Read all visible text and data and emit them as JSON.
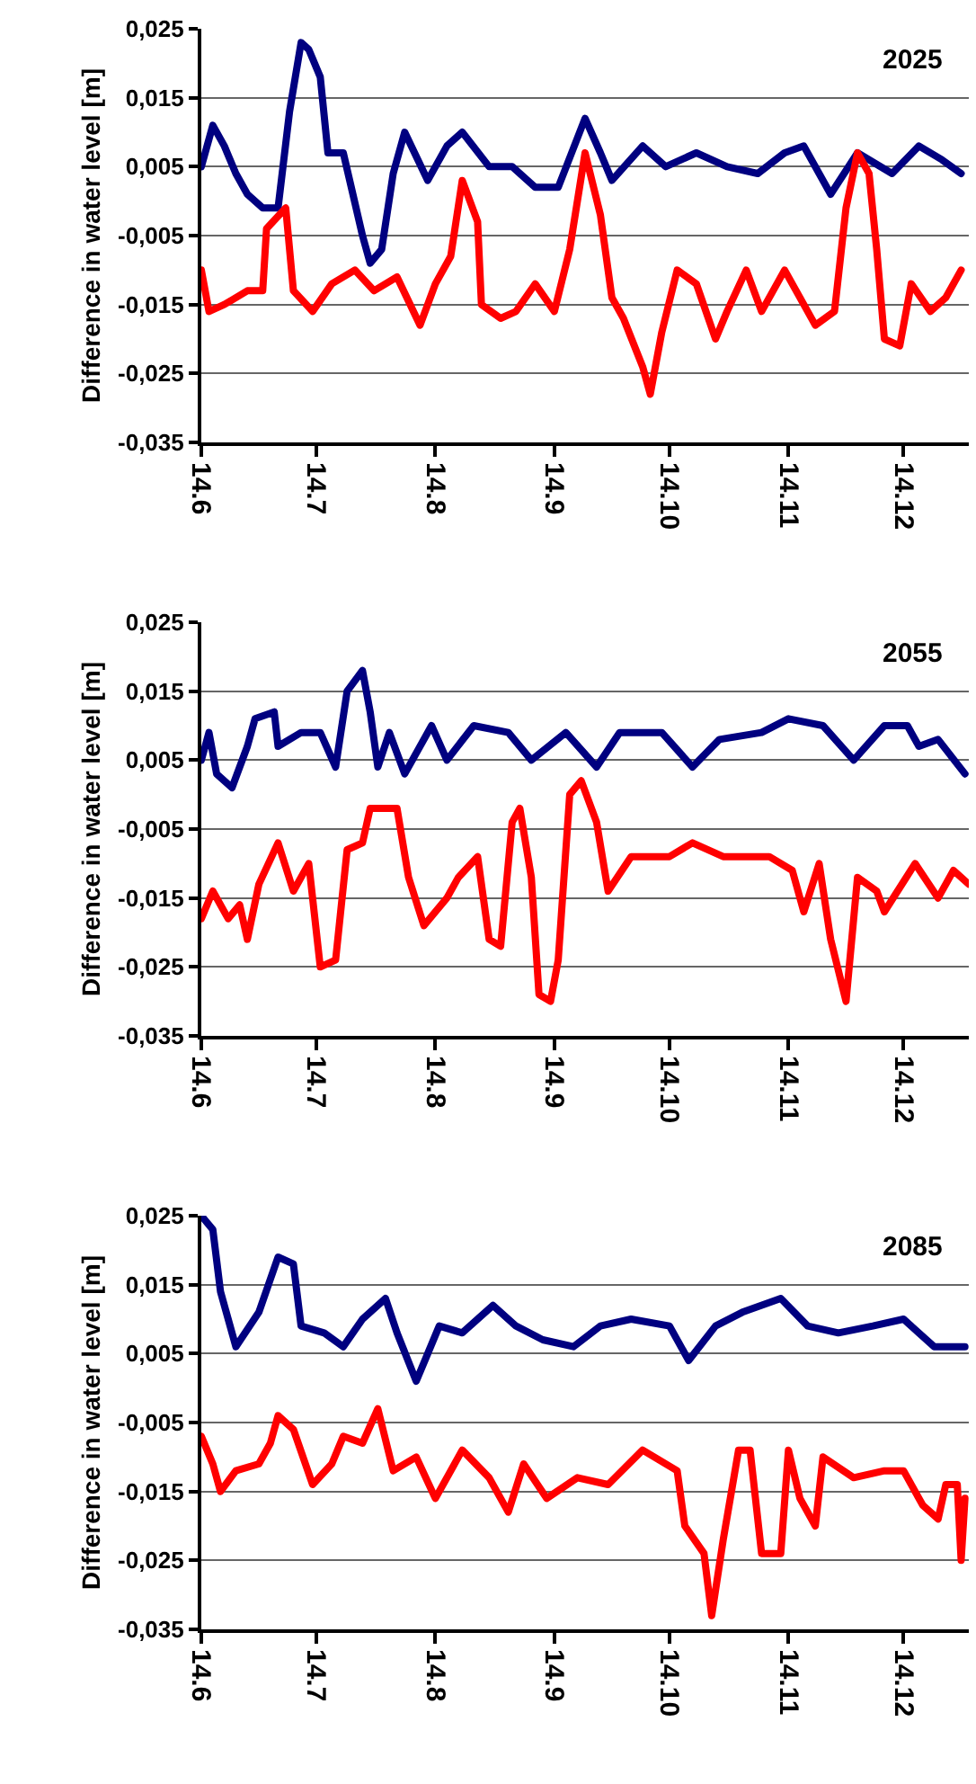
{
  "chart_data": [
    {
      "type": "line",
      "annotations": [
        "2025"
      ],
      "ylabel": "Difference in water level [m]",
      "grid": "y",
      "marker": "none",
      "line_style": "solid",
      "xlim": [
        "--06-14",
        "--12-31"
      ],
      "xticks": [
        {
          "value": "--06-14",
          "label": "14.6"
        },
        {
          "value": "--07-14",
          "label": "14.7"
        },
        {
          "value": "--08-14",
          "label": "14.8"
        },
        {
          "value": "--09-14",
          "label": "14.9"
        },
        {
          "value": "--10-14",
          "label": "14.10"
        },
        {
          "value": "--11-14",
          "label": "14.11"
        },
        {
          "value": "--12-14",
          "label": "14.12"
        }
      ],
      "ylim": [
        -0.035,
        0.025
      ],
      "yticks": [
        {
          "value": -0.035,
          "label": "-0,035"
        },
        {
          "value": -0.025,
          "label": "-0,025"
        },
        {
          "value": -0.015,
          "label": "-0,015"
        },
        {
          "value": -0.005,
          "label": "-0,005"
        },
        {
          "value": 0.005,
          "label": "0,005"
        },
        {
          "value": 0.015,
          "label": "0,015"
        },
        {
          "value": 0.025,
          "label": "0,025"
        }
      ],
      "series": [
        {
          "color": "#000080",
          "x": [
            "--06-14",
            "--06-17",
            "--06-20",
            "--06-23",
            "--06-26",
            "--06-30",
            "--07-04",
            "--07-07",
            "--07-10",
            "--07-12",
            "--07-15",
            "--07-17",
            "--07-21",
            "--07-26",
            "--07-28",
            "--07-31",
            "--08-03",
            "--08-06",
            "--08-12",
            "--08-17",
            "--08-21",
            "--08-28",
            "--09-03",
            "--09-09",
            "--09-15",
            "--09-22",
            "--09-26",
            "--09-29",
            "--10-07",
            "--10-13",
            "--10-21",
            "--10-29",
            "--11-06",
            "--11-13",
            "--11-18",
            "--11-25",
            "--12-02",
            "--12-11",
            "--12-18",
            "--12-24",
            "--12-29"
          ],
          "values": [
            0.005,
            0.011,
            0.008,
            0.004,
            0.001,
            -0.001,
            -0.001,
            0.013,
            0.023,
            0.022,
            0.018,
            0.007,
            0.007,
            -0.005,
            -0.009,
            -0.007,
            0.004,
            0.01,
            0.003,
            0.008,
            0.01,
            0.005,
            0.005,
            0.002,
            0.002,
            0.012,
            0.007,
            0.003,
            0.008,
            0.005,
            0.007,
            0.005,
            0.004,
            0.007,
            0.008,
            0.001,
            0.007,
            0.004,
            0.008,
            0.006,
            0.004
          ]
        },
        {
          "color": "#ff0000",
          "x": [
            "--06-14",
            "--06-16",
            "--06-20",
            "--06-26",
            "--06-30",
            "--07-01",
            "--07-06",
            "--07-08",
            "--07-13",
            "--07-18",
            "--07-24",
            "--07-29",
            "--08-04",
            "--08-10",
            "--08-14",
            "--08-18",
            "--08-21",
            "--08-25",
            "--08-26",
            "--08-31",
            "--09-04",
            "--09-09",
            "--09-14",
            "--09-18",
            "--09-22",
            "--09-26",
            "--09-29",
            "--10-02",
            "--10-07",
            "--10-09",
            "--10-12",
            "--10-16",
            "--10-21",
            "--10-26",
            "--10-29",
            "--11-03",
            "--11-07",
            "--11-13",
            "--11-21",
            "--11-26",
            "--11-29",
            "--12-02",
            "--12-05",
            "--12-07",
            "--12-09",
            "--12-13",
            "--12-16",
            "--12-21",
            "--12-25",
            "--12-29"
          ],
          "values": [
            -0.01,
            -0.016,
            -0.015,
            -0.013,
            -0.013,
            -0.004,
            -0.001,
            -0.013,
            -0.016,
            -0.012,
            -0.01,
            -0.013,
            -0.011,
            -0.018,
            -0.012,
            -0.008,
            0.003,
            -0.003,
            -0.015,
            -0.017,
            -0.016,
            -0.012,
            -0.016,
            -0.007,
            0.007,
            -0.002,
            -0.014,
            -0.017,
            -0.024,
            -0.028,
            -0.019,
            -0.01,
            -0.012,
            -0.02,
            -0.016,
            -0.01,
            -0.016,
            -0.01,
            -0.018,
            -0.016,
            -0.001,
            0.007,
            0.004,
            -0.007,
            -0.02,
            -0.021,
            -0.012,
            -0.016,
            -0.014,
            -0.01
          ]
        }
      ]
    },
    {
      "type": "line",
      "annotations": [
        "2055"
      ],
      "ylabel": "Difference in water level [m]",
      "grid": "y",
      "marker": "none",
      "line_style": "solid",
      "xlim": [
        "--06-14",
        "--12-31"
      ],
      "xticks": [
        {
          "value": "--06-14",
          "label": "14.6"
        },
        {
          "value": "--07-14",
          "label": "14.7"
        },
        {
          "value": "--08-14",
          "label": "14.8"
        },
        {
          "value": "--09-14",
          "label": "14.9"
        },
        {
          "value": "--10-14",
          "label": "14.10"
        },
        {
          "value": "--11-14",
          "label": "14.11"
        },
        {
          "value": "--12-14",
          "label": "14.12"
        }
      ],
      "ylim": [
        -0.035,
        0.025
      ],
      "yticks": [
        {
          "value": -0.035,
          "label": "-0,035"
        },
        {
          "value": -0.025,
          "label": "-0,025"
        },
        {
          "value": -0.015,
          "label": "-0,015"
        },
        {
          "value": -0.005,
          "label": "-0,005"
        },
        {
          "value": 0.005,
          "label": "0,005"
        },
        {
          "value": 0.015,
          "label": "0,015"
        },
        {
          "value": 0.025,
          "label": "0,025"
        }
      ],
      "series": [
        {
          "color": "#000080",
          "x": [
            "--06-14",
            "--06-16",
            "--06-18",
            "--06-22",
            "--06-26",
            "--06-28",
            "--07-03",
            "--07-04",
            "--07-10",
            "--07-15",
            "--07-19",
            "--07-22",
            "--07-26",
            "--07-28",
            "--07-30",
            "--08-02",
            "--08-06",
            "--08-13",
            "--08-17",
            "--08-24",
            "--09-02",
            "--09-08",
            "--09-17",
            "--09-25",
            "--10-01",
            "--10-12",
            "--10-20",
            "--10-27",
            "--11-07",
            "--11-14",
            "--11-23",
            "--12-01",
            "--12-09",
            "--12-15",
            "--12-18",
            "--12-23",
            "--12-30"
          ],
          "values": [
            0.005,
            0.009,
            0.003,
            0.001,
            0.007,
            0.011,
            0.012,
            0.007,
            0.009,
            0.009,
            0.004,
            0.015,
            0.018,
            0.012,
            0.004,
            0.009,
            0.003,
            0.01,
            0.005,
            0.01,
            0.009,
            0.005,
            0.009,
            0.004,
            0.009,
            0.009,
            0.004,
            0.008,
            0.009,
            0.011,
            0.01,
            0.005,
            0.01,
            0.01,
            0.007,
            0.008,
            0.003
          ]
        },
        {
          "color": "#ff0000",
          "x": [
            "--06-14",
            "--06-17",
            "--06-21",
            "--06-24",
            "--06-26",
            "--06-29",
            "--07-04",
            "--07-08",
            "--07-12",
            "--07-15",
            "--07-19",
            "--07-22",
            "--07-26",
            "--07-28",
            "--08-04",
            "--08-07",
            "--08-11",
            "--08-17",
            "--08-20",
            "--08-25",
            "--08-28",
            "--08-31",
            "--09-03",
            "--09-05",
            "--09-08",
            "--09-10",
            "--09-13",
            "--09-15",
            "--09-18",
            "--09-21",
            "--09-25",
            "--09-28",
            "--10-04",
            "--10-14",
            "--10-20",
            "--10-28",
            "--11-09",
            "--11-15",
            "--11-18",
            "--11-22",
            "--11-25",
            "--11-29",
            "--12-02",
            "--12-07",
            "--12-09",
            "--12-17",
            "--12-23",
            "--12-27",
            "--12-31"
          ],
          "values": [
            -0.018,
            -0.014,
            -0.018,
            -0.016,
            -0.021,
            -0.013,
            -0.007,
            -0.014,
            -0.01,
            -0.025,
            -0.024,
            -0.008,
            -0.007,
            -0.002,
            -0.002,
            -0.012,
            -0.019,
            -0.015,
            -0.012,
            -0.009,
            -0.021,
            -0.022,
            -0.004,
            -0.002,
            -0.012,
            -0.029,
            -0.03,
            -0.024,
            0.0,
            0.002,
            -0.004,
            -0.014,
            -0.009,
            -0.009,
            -0.007,
            -0.009,
            -0.009,
            -0.011,
            -0.017,
            -0.01,
            -0.021,
            -0.03,
            -0.012,
            -0.014,
            -0.017,
            -0.01,
            -0.015,
            -0.011,
            -0.013
          ]
        }
      ]
    },
    {
      "type": "line",
      "annotations": [
        "2085"
      ],
      "ylabel": "Difference in water level [m]",
      "grid": "y",
      "marker": "none",
      "line_style": "solid",
      "xlim": [
        "--06-14",
        "--12-31"
      ],
      "xticks": [
        {
          "value": "--06-14",
          "label": "14.6"
        },
        {
          "value": "--07-14",
          "label": "14.7"
        },
        {
          "value": "--08-14",
          "label": "14.8"
        },
        {
          "value": "--09-14",
          "label": "14.9"
        },
        {
          "value": "--10-14",
          "label": "14.10"
        },
        {
          "value": "--11-14",
          "label": "14.11"
        },
        {
          "value": "--12-14",
          "label": "14.12"
        }
      ],
      "ylim": [
        -0.035,
        0.025
      ],
      "yticks": [
        {
          "value": -0.035,
          "label": "-0,035"
        },
        {
          "value": -0.025,
          "label": "-0,025"
        },
        {
          "value": -0.015,
          "label": "-0,015"
        },
        {
          "value": -0.005,
          "label": "-0,005"
        },
        {
          "value": 0.005,
          "label": "0,005"
        },
        {
          "value": 0.015,
          "label": "0,015"
        },
        {
          "value": 0.025,
          "label": "0,025"
        }
      ],
      "series": [
        {
          "color": "#000080",
          "x": [
            "--06-14",
            "--06-17",
            "--06-19",
            "--06-23",
            "--06-29",
            "--07-04",
            "--07-08",
            "--07-10",
            "--07-16",
            "--07-21",
            "--07-26",
            "--08-01",
            "--08-04",
            "--08-09",
            "--08-12",
            "--08-15",
            "--08-21",
            "--08-29",
            "--09-04",
            "--09-11",
            "--09-19",
            "--09-26",
            "--10-04",
            "--10-14",
            "--10-19",
            "--10-26",
            "--11-02",
            "--11-12",
            "--11-19",
            "--11-27",
            "--12-06",
            "--12-14",
            "--12-22",
            "--12-30"
          ],
          "values": [
            0.025,
            0.023,
            0.014,
            0.006,
            0.011,
            0.019,
            0.018,
            0.009,
            0.008,
            0.006,
            0.01,
            0.013,
            0.008,
            0.001,
            0.005,
            0.009,
            0.008,
            0.012,
            0.009,
            0.007,
            0.006,
            0.009,
            0.01,
            0.009,
            0.004,
            0.009,
            0.011,
            0.013,
            0.009,
            0.008,
            0.009,
            0.01,
            0.006,
            0.006
          ]
        },
        {
          "color": "#ff0000",
          "x": [
            "--06-14",
            "--06-17",
            "--06-19",
            "--06-23",
            "--06-29",
            "--07-02",
            "--07-04",
            "--07-08",
            "--07-13",
            "--07-18",
            "--07-21",
            "--07-26",
            "--07-30",
            "--08-03",
            "--08-09",
            "--08-14",
            "--08-21",
            "--08-28",
            "--09-02",
            "--09-06",
            "--09-12",
            "--09-20",
            "--09-28",
            "--10-07",
            "--10-16",
            "--10-18",
            "--10-23",
            "--10-25",
            "--10-28",
            "--11-01",
            "--11-04",
            "--11-07",
            "--11-12",
            "--11-14",
            "--11-17",
            "--11-21",
            "--11-23",
            "--12-01",
            "--12-09",
            "--12-14",
            "--12-19",
            "--12-23",
            "--12-25",
            "--12-28",
            "--12-29",
            "--12-30"
          ],
          "values": [
            -0.007,
            -0.011,
            -0.015,
            -0.012,
            -0.011,
            -0.008,
            -0.004,
            -0.006,
            -0.014,
            -0.011,
            -0.007,
            -0.008,
            -0.003,
            -0.012,
            -0.01,
            -0.016,
            -0.009,
            -0.013,
            -0.018,
            -0.011,
            -0.016,
            -0.013,
            -0.014,
            -0.009,
            -0.012,
            -0.02,
            -0.024,
            -0.033,
            -0.022,
            -0.009,
            -0.009,
            -0.024,
            -0.024,
            -0.009,
            -0.016,
            -0.02,
            -0.01,
            -0.013,
            -0.012,
            -0.012,
            -0.017,
            -0.019,
            -0.014,
            -0.014,
            -0.025,
            -0.016
          ]
        }
      ]
    }
  ]
}
